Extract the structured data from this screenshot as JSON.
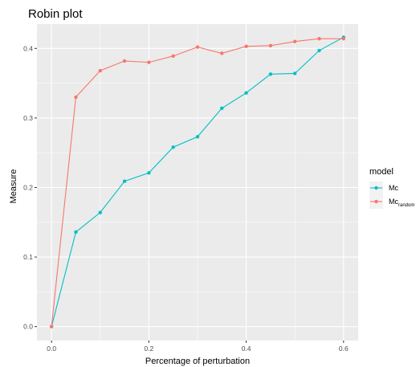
{
  "chart_data": {
    "type": "line",
    "title": "Robin plot",
    "xlabel": "Percentage of perturbation",
    "ylabel": "Measure",
    "xlim": [
      -0.03,
      0.63
    ],
    "ylim": [
      -0.02,
      0.435
    ],
    "x_ticks": [
      0.0,
      0.2,
      0.4,
      0.6
    ],
    "x_tick_labels": [
      "0.0",
      "0.2",
      "0.4",
      "0.6"
    ],
    "y_ticks": [
      0.0,
      0.1,
      0.2,
      0.3,
      0.4
    ],
    "y_tick_labels": [
      "0.0",
      "0.1",
      "0.2",
      "0.3",
      "0.4"
    ],
    "grid": true,
    "background": "#ebebeb",
    "legend": {
      "title": "model",
      "position": "right",
      "entries": [
        {
          "label": "Mc",
          "sub": "",
          "color": "#00bfc4"
        },
        {
          "label": "Mc",
          "sub": "random",
          "color": "#f8766d"
        }
      ]
    },
    "x": [
      0.0,
      0.05,
      0.1,
      0.15,
      0.2,
      0.25,
      0.3,
      0.35,
      0.4,
      0.45,
      0.5,
      0.55,
      0.6
    ],
    "series": [
      {
        "name": "Mc",
        "color": "#00bfc4",
        "values": [
          0.0,
          0.136,
          0.164,
          0.209,
          0.221,
          0.258,
          0.273,
          0.314,
          0.336,
          0.363,
          0.364,
          0.397,
          0.416
        ]
      },
      {
        "name": "Mcrandom",
        "color": "#f8766d",
        "values": [
          0.0,
          0.33,
          0.368,
          0.382,
          0.38,
          0.389,
          0.402,
          0.393,
          0.403,
          0.404,
          0.41,
          0.414,
          0.414
        ]
      }
    ]
  }
}
